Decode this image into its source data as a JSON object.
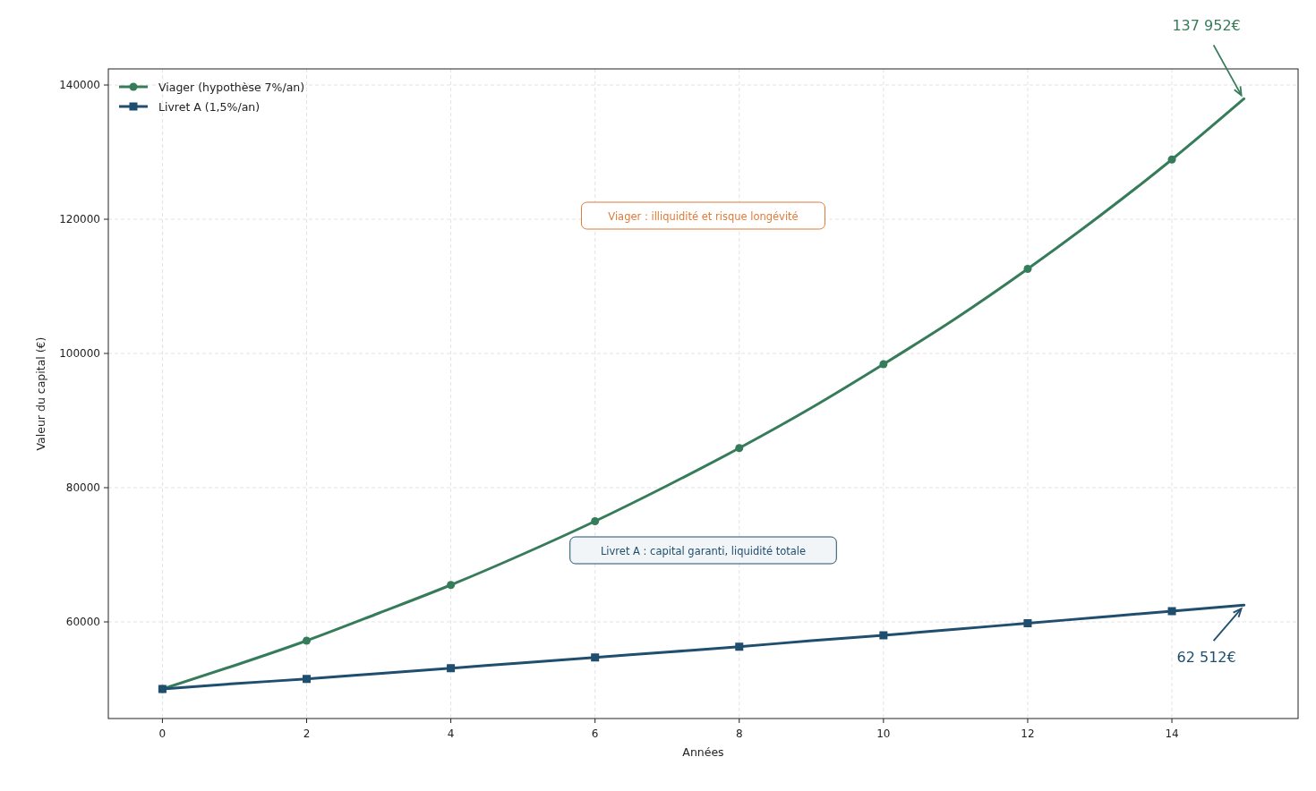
{
  "chart_data": {
    "type": "line",
    "xlabel": "Années",
    "ylabel": "Valeur du capital (€)",
    "x": [
      0,
      1,
      2,
      3,
      4,
      5,
      6,
      7,
      8,
      9,
      10,
      11,
      12,
      13,
      14,
      15
    ],
    "series": [
      {
        "name": "Viager (hypothèse 7%/an)",
        "color": "#367c5a",
        "marker": "circle",
        "values": [
          50000,
          53500,
          57200,
          61300,
          65500,
          70100,
          75000,
          80300,
          85900,
          91900,
          98400,
          105200,
          112600,
          120500,
          128900,
          137952
        ]
      },
      {
        "name": "Livret A (1,5%/an)",
        "color": "#1f4e6e",
        "marker": "square",
        "values": [
          50000,
          50800,
          51500,
          52300,
          53100,
          53900,
          54700,
          55500,
          56300,
          57200,
          58000,
          58900,
          59800,
          60700,
          61600,
          62512
        ]
      }
    ],
    "xlim": [
      -0.75,
      15.75
    ],
    "xticks": [
      0,
      2,
      4,
      6,
      8,
      10,
      12,
      14
    ],
    "ylim": [
      45600,
      142400
    ],
    "yticks": [
      60000,
      80000,
      100000,
      120000,
      140000
    ],
    "grid": true,
    "legend": "top left",
    "line_style": "solid",
    "annotations": [
      {
        "text": "137 952€",
        "x": 15,
        "y": 137952
      },
      {
        "text": "62 512€",
        "x": 15,
        "y": 62512
      },
      "Viager : illiquidité et risque longévité",
      "Livret A : capital garanti, liquidité totale"
    ]
  }
}
